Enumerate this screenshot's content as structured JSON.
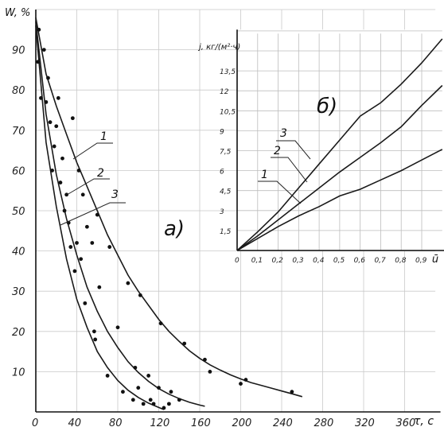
{
  "chart_data": [
    {
      "type": "scatter",
      "panel_label": "а)",
      "ylabel": "W, %",
      "xlabel": "τ, с",
      "xlim": [
        0,
        400
      ],
      "ylim": [
        0,
        100
      ],
      "x_ticks": [
        "0",
        "40",
        "80",
        "120",
        "160",
        "200",
        "240",
        "280",
        "320",
        "360"
      ],
      "y_ticks": [
        "10",
        "20",
        "30",
        "40",
        "50",
        "60",
        "70",
        "80",
        "90"
      ],
      "grid": true,
      "curves": [
        {
          "label": "1",
          "x": [
            0,
            10,
            20,
            30,
            40,
            50,
            60,
            70,
            80,
            90,
            100,
            110,
            120,
            130,
            140,
            150,
            160,
            170,
            180,
            190,
            200,
            210,
            220,
            230,
            240,
            250,
            260
          ],
          "y": [
            98,
            84,
            76,
            69,
            62,
            56,
            50,
            44,
            39,
            34,
            30,
            26.5,
            23,
            20,
            17.5,
            15.2,
            13.3,
            11.7,
            10.4,
            9.2,
            8.2,
            7.3,
            6.6,
            5.9,
            5.2,
            4.5,
            3.8
          ]
        },
        {
          "label": "2",
          "x": [
            0,
            10,
            20,
            30,
            40,
            50,
            60,
            70,
            80,
            90,
            100,
            110,
            120,
            130,
            140,
            150,
            160,
            165
          ],
          "y": [
            97,
            74,
            59,
            48,
            39,
            31,
            25,
            20,
            16,
            12.5,
            9.8,
            7.6,
            5.8,
            4.4,
            3.3,
            2.4,
            1.7,
            1.4
          ]
        },
        {
          "label": "3",
          "x": [
            0,
            10,
            20,
            30,
            40,
            50,
            60,
            70,
            80,
            90,
            100,
            110,
            120,
            125
          ],
          "y": [
            96,
            67,
            51,
            38,
            28,
            21,
            15,
            11,
            7.8,
            5.4,
            3.6,
            2.2,
            1.1,
            0.6
          ]
        }
      ],
      "points": [
        {
          "x": 2,
          "y": 87
        },
        {
          "x": 3,
          "y": 95
        },
        {
          "x": 5,
          "y": 78
        },
        {
          "x": 8,
          "y": 90
        },
        {
          "x": 10,
          "y": 77
        },
        {
          "x": 12,
          "y": 83
        },
        {
          "x": 14,
          "y": 72
        },
        {
          "x": 16,
          "y": 60
        },
        {
          "x": 18,
          "y": 66
        },
        {
          "x": 20,
          "y": 71
        },
        {
          "x": 22,
          "y": 78
        },
        {
          "x": 24,
          "y": 57
        },
        {
          "x": 26,
          "y": 63
        },
        {
          "x": 28,
          "y": 50
        },
        {
          "x": 30,
          "y": 54
        },
        {
          "x": 32,
          "y": 47
        },
        {
          "x": 34,
          "y": 41
        },
        {
          "x": 36,
          "y": 73
        },
        {
          "x": 38,
          "y": 35
        },
        {
          "x": 40,
          "y": 42
        },
        {
          "x": 42,
          "y": 60
        },
        {
          "x": 44,
          "y": 38
        },
        {
          "x": 46,
          "y": 54
        },
        {
          "x": 48,
          "y": 27
        },
        {
          "x": 50,
          "y": 46
        },
        {
          "x": 55,
          "y": 42
        },
        {
          "x": 57,
          "y": 20
        },
        {
          "x": 58,
          "y": 18
        },
        {
          "x": 60,
          "y": 49
        },
        {
          "x": 62,
          "y": 31
        },
        {
          "x": 70,
          "y": 9
        },
        {
          "x": 72,
          "y": 41
        },
        {
          "x": 80,
          "y": 21
        },
        {
          "x": 85,
          "y": 5
        },
        {
          "x": 90,
          "y": 32
        },
        {
          "x": 95,
          "y": 3
        },
        {
          "x": 97,
          "y": 11
        },
        {
          "x": 100,
          "y": 6
        },
        {
          "x": 102,
          "y": 29
        },
        {
          "x": 105,
          "y": 2
        },
        {
          "x": 110,
          "y": 9
        },
        {
          "x": 112,
          "y": 3
        },
        {
          "x": 115,
          "y": 2
        },
        {
          "x": 120,
          "y": 6
        },
        {
          "x": 122,
          "y": 22
        },
        {
          "x": 125,
          "y": 1
        },
        {
          "x": 130,
          "y": 2
        },
        {
          "x": 132,
          "y": 5
        },
        {
          "x": 140,
          "y": 3
        },
        {
          "x": 145,
          "y": 17
        },
        {
          "x": 165,
          "y": 13
        },
        {
          "x": 170,
          "y": 10
        },
        {
          "x": 200,
          "y": 7
        },
        {
          "x": 205,
          "y": 8
        },
        {
          "x": 250,
          "y": 5
        }
      ]
    },
    {
      "type": "line",
      "panel_label": "б)",
      "ylabel": "j, кг/(м²·ч)",
      "xlabel": "ū",
      "xlim": [
        0,
        1.0
      ],
      "ylim": [
        0,
        16.5
      ],
      "x_ticks": [
        "0",
        "0,1",
        "0,2",
        "0,3",
        "0,4",
        "0,5",
        "0,6",
        "0,7",
        "0,8",
        "0,9"
      ],
      "y_ticks": [
        "1,5",
        "3",
        "4,5",
        "6",
        "7,5",
        "9",
        "10,5",
        "12",
        "13,5"
      ],
      "grid": true,
      "series": [
        {
          "name": "1",
          "x": [
            0,
            0.1,
            0.2,
            0.3,
            0.4,
            0.5,
            0.6,
            0.7,
            0.8,
            0.9,
            1.0
          ],
          "y": [
            0,
            0.9,
            1.8,
            2.6,
            3.3,
            4.1,
            4.6,
            5.3,
            6.0,
            6.8,
            7.6
          ]
        },
        {
          "name": "2",
          "x": [
            0,
            0.1,
            0.2,
            0.3,
            0.4,
            0.5,
            0.6,
            0.7,
            0.8,
            0.9,
            1.0
          ],
          "y": [
            0,
            1.1,
            2.3,
            3.5,
            4.7,
            5.9,
            7.0,
            8.1,
            9.3,
            10.9,
            12.4
          ]
        },
        {
          "name": "3",
          "x": [
            0,
            0.1,
            0.2,
            0.3,
            0.4,
            0.5,
            0.6,
            0.7,
            0.8,
            0.9,
            1.0
          ],
          "y": [
            0,
            1.4,
            2.9,
            4.7,
            6.5,
            8.3,
            10.1,
            11.1,
            12.5,
            14.1,
            15.9
          ]
        }
      ]
    }
  ]
}
